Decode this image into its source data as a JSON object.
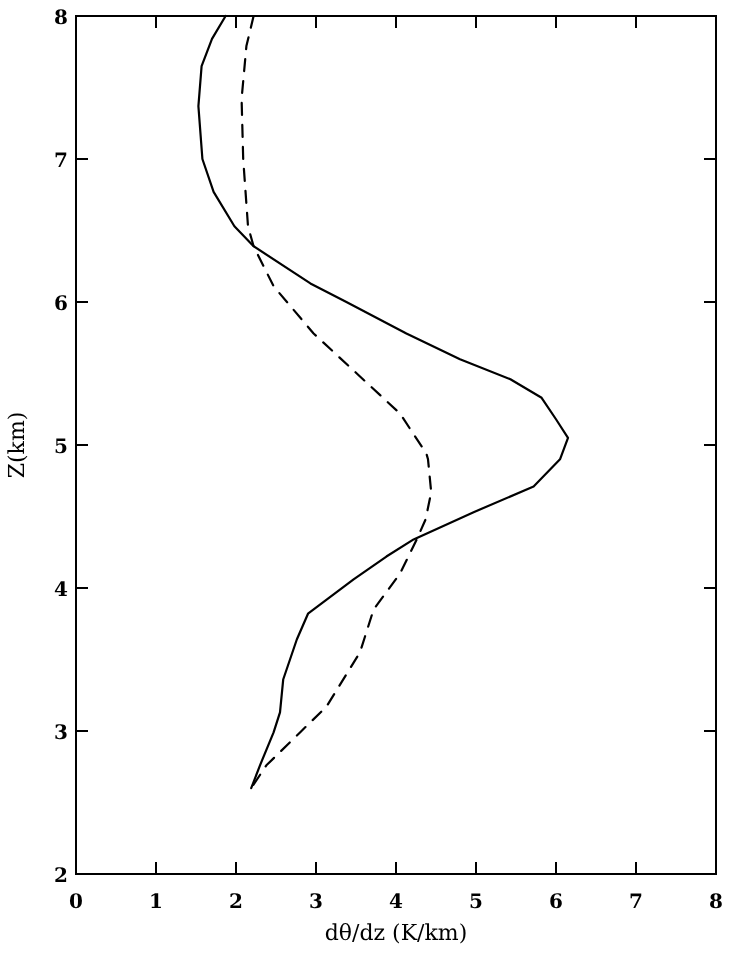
{
  "chart_data": {
    "type": "line",
    "xlabel": "dθ/dz (K/km)",
    "ylabel": "Z(km)",
    "xlim": [
      0,
      8
    ],
    "ylim": [
      2,
      8
    ],
    "xticks": [
      0,
      1,
      2,
      3,
      4,
      5,
      6,
      7,
      8
    ],
    "yticks": [
      2,
      3,
      4,
      5,
      6,
      7,
      8
    ],
    "series": [
      {
        "color": "#000000",
        "line_style": "solid",
        "x": [
          1.87,
          1.7,
          1.57,
          1.53,
          1.58,
          1.72,
          1.98,
          2.22,
          2.93,
          3.38,
          4.13,
          4.8,
          5.43,
          5.82,
          6.0,
          6.15,
          6.05,
          5.72,
          4.97,
          4.22,
          3.88,
          3.47,
          2.9,
          2.76,
          2.59,
          2.55,
          2.47,
          2.3,
          2.19
        ],
        "values": [
          8,
          7.84,
          7.65,
          7.37,
          7.0,
          6.77,
          6.53,
          6.39,
          6.13,
          6.0,
          5.78,
          5.6,
          5.46,
          5.33,
          5.18,
          5.05,
          4.9,
          4.71,
          4.53,
          4.34,
          4.22,
          4.06,
          3.82,
          3.64,
          3.36,
          3.13,
          2.99,
          2.76,
          2.6
        ]
      },
      {
        "color": "#000000",
        "line_style": "dashed",
        "x": [
          2.22,
          2.13,
          2.07,
          2.09,
          2.15,
          2.22,
          2.47,
          2.97,
          3.51,
          4.05,
          4.38,
          4.4,
          4.44,
          4.37,
          4.26,
          4.05,
          3.72,
          3.55,
          3.13,
          2.8,
          2.38,
          2.19
        ],
        "values": [
          8,
          7.79,
          7.42,
          7.0,
          6.53,
          6.39,
          6.11,
          5.78,
          5.5,
          5.22,
          4.94,
          4.9,
          4.67,
          4.48,
          4.34,
          4.1,
          3.85,
          3.55,
          3.17,
          2.99,
          2.76,
          2.6
        ]
      }
    ]
  }
}
